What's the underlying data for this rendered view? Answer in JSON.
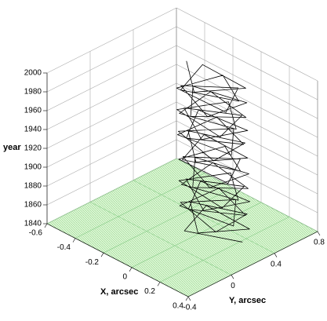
{
  "chart_data": {
    "type": "line3d",
    "x_label": "X, arcsec",
    "y_label": "Y, arcsec",
    "z_label": "year",
    "xlim": [
      -0.6,
      0.4
    ],
    "xticks": [
      -0.6,
      -0.4,
      -0.2,
      0,
      0.2,
      0.4
    ],
    "ylim": [
      -0.4,
      0.8
    ],
    "yticks": [
      -0.4,
      0,
      0.4,
      0.8
    ],
    "zlim": [
      1840,
      2000
    ],
    "zticks": [
      1840,
      1860,
      1880,
      1900,
      1920,
      1940,
      1960,
      1980,
      2000
    ],
    "color": "#000000",
    "floor_color": "#c8f5c0",
    "grid": true,
    "x": [
      0.25,
      -0.018,
      -0.104,
      0.224,
      0.084,
      -0.146,
      0.15,
      0.178,
      -0.138,
      0.05,
      0.238,
      -0.078,
      -0.05,
      0.246,
      0.016,
      -0.124,
      0.204,
      0.118,
      -0.15,
      0.118,
      0.204,
      -0.124,
      0.016,
      0.246,
      -0.05,
      -0.078,
      0.238,
      0.05,
      -0.138,
      0.178,
      0.15,
      -0.146,
      0.084,
      0.224,
      -0.104,
      -0.018,
      0.22,
      -0.048,
      -0.134,
      0.194,
      0.054,
      -0.176,
      0.12,
      0.148,
      -0.168,
      0.02,
      0.208,
      -0.108,
      -0.08,
      0.216,
      -0.014,
      -0.154,
      0.174,
      0.088,
      -0.18,
      0.088,
      0.174,
      -0.154,
      -0.014,
      0.216,
      -0.08,
      -0.108,
      0.208,
      0.02,
      -0.168,
      0.148,
      0.12,
      -0.176,
      0.054,
      0.194,
      -0.134,
      -0.048,
      0.2,
      -0.068,
      -0.154,
      0.174,
      0.034,
      -0.196
    ],
    "y": [
      0.3,
      0.112,
      0.428,
      0.4,
      0.104,
      0.334,
      0.474,
      0.146,
      0.232,
      0.5,
      0.232,
      0.146,
      0.474,
      0.334,
      0.104,
      0.4,
      0.428,
      0.112,
      0.3,
      0.488,
      0.172,
      0.2,
      0.496,
      0.266,
      0.126,
      0.454,
      0.368,
      0.1,
      0.368,
      0.454,
      0.126,
      0.266,
      0.496,
      0.2,
      0.172,
      0.488,
      0.32,
      0.132,
      0.448,
      0.42,
      0.124,
      0.354,
      0.494,
      0.166,
      0.252,
      0.52,
      0.252,
      0.166,
      0.494,
      0.354,
      0.124,
      0.42,
      0.448,
      0.132,
      0.32,
      0.508,
      0.192,
      0.22,
      0.516,
      0.286,
      0.146,
      0.474,
      0.388,
      0.12,
      0.388,
      0.474,
      0.146,
      0.286,
      0.516,
      0.22,
      0.192,
      0.508,
      0.33,
      0.142,
      0.458,
      0.43,
      0.134,
      0.364
    ],
    "z": [
      1846,
      1848,
      1850,
      1852,
      1854,
      1856,
      1858,
      1860,
      1862,
      1864,
      1866,
      1868,
      1870,
      1872,
      1874,
      1876,
      1878,
      1880,
      1882,
      1884,
      1886,
      1888,
      1890,
      1892,
      1894,
      1896,
      1898,
      1900,
      1902,
      1904,
      1906,
      1908,
      1910,
      1912,
      1914,
      1916,
      1918,
      1920,
      1922,
      1924,
      1926,
      1928,
      1930,
      1932,
      1934,
      1936,
      1938,
      1940,
      1942,
      1944,
      1946,
      1948,
      1950,
      1952,
      1954,
      1956,
      1958,
      1960,
      1962,
      1964,
      1966,
      1968,
      1970,
      1972,
      1974,
      1976,
      1978,
      1980,
      1982,
      1984,
      1986,
      1988,
      1990,
      1992,
      1994,
      1996,
      1998,
      2000
    ]
  }
}
